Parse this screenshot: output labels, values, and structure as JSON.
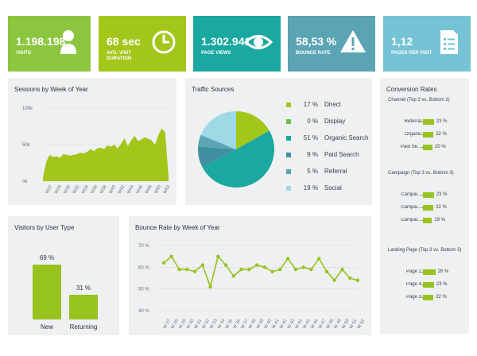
{
  "colors": {
    "green_dark": "#8cc63f",
    "green_lime": "#a3c61a",
    "teal": "#1aa8a0",
    "blue_grey": "#5ba4b4",
    "light_blue": "#76c3d6",
    "panel_bg": "#eef0f1",
    "chart_green": "#97c31f"
  },
  "kpis": [
    {
      "value": "1.198.198",
      "label": "VISITS",
      "icon": "user-icon",
      "color": "#8cc63f"
    },
    {
      "value": "68 sec",
      "label": "AVG. VISIT\nDURATION",
      "icon": "clock-icon",
      "color": "#a3c61a"
    },
    {
      "value": "1.302.941",
      "label": "PAGE VIEWS",
      "icon": "eye-icon",
      "color": "#1aa8a0"
    },
    {
      "value": "58,53 %",
      "label": "BOUNCE RATE",
      "icon": "warning-icon",
      "color": "#5ba4b4"
    },
    {
      "value": "1,12",
      "label": "PAGES PER VISIT",
      "icon": "document-icon",
      "color": "#76c3d6"
    }
  ],
  "sessions": {
    "title": "Sessions by Week of Year"
  },
  "traffic": {
    "title": "Traffic Sources"
  },
  "visitors": {
    "title": "Visitors by User Type"
  },
  "bounce": {
    "title": "Bounce Rate by Week of Year"
  },
  "conversion": {
    "title": "Conversion Rates",
    "sections": [
      {
        "title": "Channel  (Top 3 vs. Bottom 3)",
        "rows": [
          {
            "label": "Referral",
            "value": 23,
            "text": "23 %"
          },
          {
            "label": "Organic",
            "value": 22,
            "text": "22 %"
          },
          {
            "label": "Paid Se...",
            "value": 20,
            "text": "20 %"
          }
        ]
      },
      {
        "title": "Campaign (Top 3 vs. Bottom 3)",
        "rows": [
          {
            "label": "Campai...",
            "value": 23,
            "text": "23 %"
          },
          {
            "label": "Campai...",
            "value": 22,
            "text": "22 %"
          },
          {
            "label": "Campai...",
            "value": 19,
            "text": "19 %"
          }
        ]
      },
      {
        "title": "Landing Page (Top 3 vs. Bottom 3)",
        "rows": [
          {
            "label": "Page 2",
            "value": 26,
            "text": "26 %"
          },
          {
            "label": "Page 4",
            "value": 23,
            "text": "23 %"
          },
          {
            "label": "Page 3",
            "value": 22,
            "text": "22 %"
          }
        ]
      }
    ]
  },
  "chart_data": [
    {
      "type": "area",
      "title": "Sessions by Week of Year",
      "yticks": [
        "100k",
        "50k",
        "0k"
      ],
      "ylim": [
        0,
        100000
      ],
      "xtick_labels": [
        "W27",
        "W28",
        "W30",
        "W32",
        "W34",
        "W36",
        "W38",
        "W40",
        "W42",
        "W44",
        "W46",
        "W48",
        "W50",
        "W52"
      ],
      "values": [
        5000,
        27000,
        36000,
        33000,
        34000,
        32000,
        37000,
        36000,
        35000,
        36000,
        37000,
        39000,
        38000,
        40000,
        44000,
        41000,
        45000,
        46000,
        44000,
        49000,
        47000,
        50000,
        45000,
        51000,
        59000,
        48000,
        56000,
        62000,
        55000,
        57000,
        60000,
        58000,
        56000,
        50000,
        63000,
        72000,
        67000,
        6000
      ],
      "color": "#a3c61a"
    },
    {
      "type": "pie",
      "title": "Traffic Sources",
      "slices": [
        {
          "name": "Direct",
          "value": 17,
          "text": "17 %",
          "color": "#a3c61a"
        },
        {
          "name": "Display",
          "value": 0,
          "text": "0 %",
          "color": "#6cc04a"
        },
        {
          "name": "Organic Search",
          "value": 51,
          "text": "51 %",
          "color": "#1aa8a0"
        },
        {
          "name": "Paid Search",
          "value": 9,
          "text": "9 %",
          "color": "#3f8fa0"
        },
        {
          "name": "Referral",
          "value": 5,
          "text": "5 %",
          "color": "#5ba4b4"
        },
        {
          "name": "Social",
          "value": 19,
          "text": "19 %",
          "color": "#9fd9e6"
        }
      ]
    },
    {
      "type": "bar",
      "title": "Visitors by User Type",
      "categories": [
        "New",
        "Returning"
      ],
      "values": [
        69,
        31
      ],
      "labels": [
        "69 %",
        "31 %"
      ],
      "color": "#97c31f"
    },
    {
      "type": "line",
      "title": "Bounce Rate by Week of Year",
      "yticks": [
        "70 %",
        "60 %",
        "50 %",
        "40 %"
      ],
      "ylim": [
        40,
        70
      ],
      "x": [
        "W 27",
        "W 28",
        "W 29",
        "W 30",
        "W 31",
        "W 32",
        "W 33",
        "W 34",
        "W 35",
        "W 36",
        "W 37",
        "W 38",
        "W 39",
        "W 40",
        "W 41",
        "W 42",
        "W 43",
        "W 44",
        "W 45",
        "W 46",
        "W 47",
        "W 48",
        "W 49",
        "W 50",
        "W 51",
        "W 52"
      ],
      "values": [
        62,
        65,
        59,
        59,
        58,
        61,
        51,
        65,
        61,
        56,
        59,
        59,
        61,
        60,
        58,
        59,
        64,
        59,
        60,
        59,
        64,
        58,
        54,
        59,
        55,
        54
      ],
      "color": "#97c31f"
    }
  ]
}
